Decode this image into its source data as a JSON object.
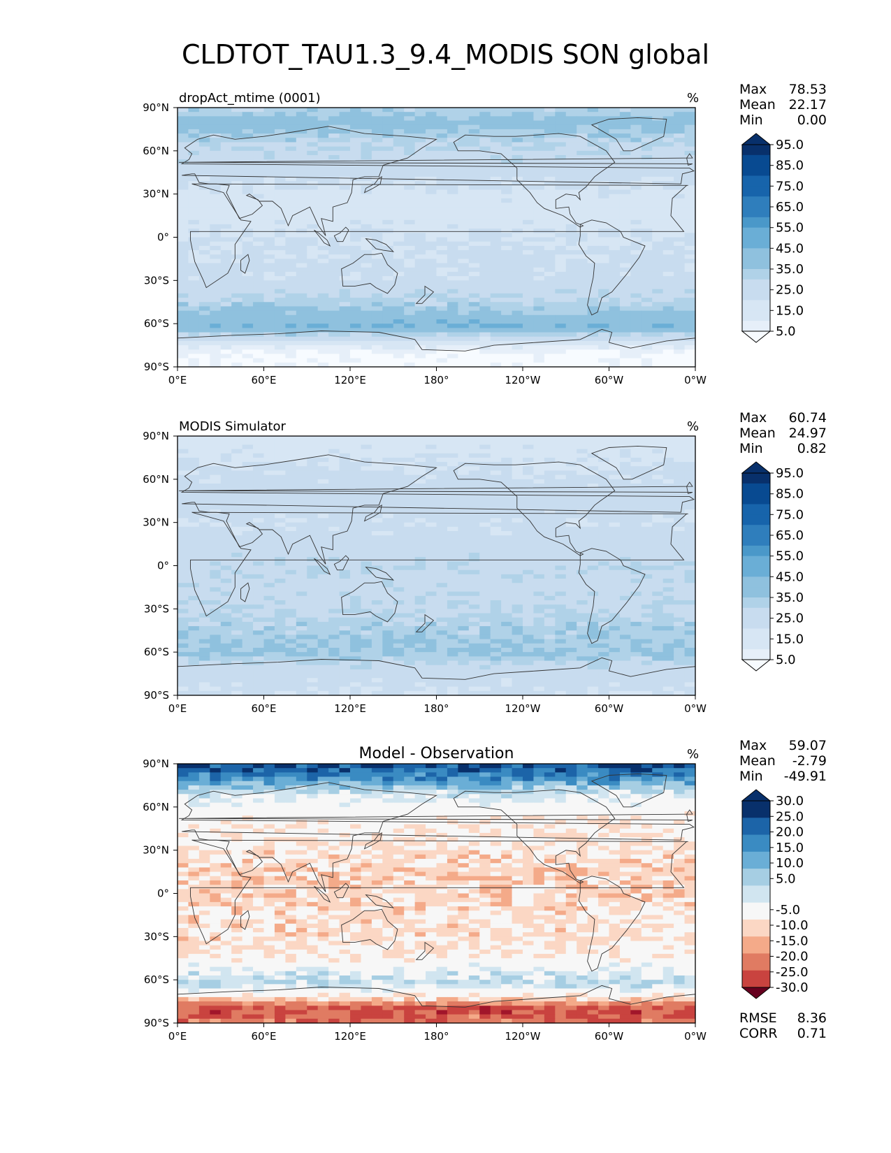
{
  "title": "CLDTOT_TAU1.3_9.4_MODIS SON global",
  "colors": {
    "blues": [
      "#f7fbff",
      "#e6eff9",
      "#d7e6f4",
      "#c8dcef",
      "#b0d2e8",
      "#8fc1de",
      "#6aaed6",
      "#4a98c9",
      "#2f7ebc",
      "#1764ab",
      "#084a91",
      "#08306b"
    ],
    "rdbu": [
      "#67001f",
      "#a1152a",
      "#c9433f",
      "#e07b62",
      "#f4aa89",
      "#fbd7c4",
      "#f7f7f7",
      "#d1e5f0",
      "#a6cee3",
      "#6aaed6",
      "#3a8bc2",
      "#1c64a8",
      "#08306b"
    ],
    "land_outline": "#333333"
  },
  "chart_data": [
    {
      "type": "heatmap",
      "name": "model-panel",
      "left_title": "dropAct_mtime (0001)",
      "center_title": "",
      "units": "%",
      "stats": [
        {
          "label": "Max",
          "value": "78.53"
        },
        {
          "label": "Mean",
          "value": "22.17"
        },
        {
          "label": "Min",
          "value": "0.00"
        }
      ],
      "extra_stats": [],
      "colormap": "blues",
      "levels": [
        0,
        5,
        10,
        15,
        20,
        25,
        30,
        35,
        40,
        45,
        50,
        55,
        60,
        65,
        70,
        75,
        80,
        85,
        90,
        95,
        100
      ],
      "colorbar_labels": [
        "95.0",
        "85.0",
        "75.0",
        "65.0",
        "55.0",
        "45.0",
        "35.0",
        "25.0",
        "15.0",
        "5.0"
      ],
      "colorbar_values": [
        95,
        85,
        75,
        65,
        55,
        45,
        35,
        25,
        15,
        5
      ],
      "x_ticks": [
        "0°E",
        "60°E",
        "120°E",
        "180°",
        "120°W",
        "60°W",
        "0°W"
      ],
      "y_ticks": [
        "90°N",
        "60°N",
        "30°N",
        "0°",
        "30°S",
        "60°S",
        "90°S"
      ],
      "latitude_profile": [
        {
          "lat": 90,
          "value": 35
        },
        {
          "lat": 80,
          "value": 45
        },
        {
          "lat": 70,
          "value": 38
        },
        {
          "lat": 60,
          "value": 33
        },
        {
          "lat": 45,
          "value": 30
        },
        {
          "lat": 30,
          "value": 22
        },
        {
          "lat": 15,
          "value": 20
        },
        {
          "lat": 0,
          "value": 25
        },
        {
          "lat": -15,
          "value": 27
        },
        {
          "lat": -30,
          "value": 28
        },
        {
          "lat": -45,
          "value": 36
        },
        {
          "lat": -55,
          "value": 44
        },
        {
          "lat": -62,
          "value": 50
        },
        {
          "lat": -70,
          "value": 30
        },
        {
          "lat": -80,
          "value": 4
        },
        {
          "lat": -90,
          "value": 2
        }
      ]
    },
    {
      "type": "heatmap",
      "name": "obs-panel",
      "left_title": "MODIS Simulator",
      "center_title": "",
      "units": "%",
      "stats": [
        {
          "label": "Max",
          "value": "60.74"
        },
        {
          "label": "Mean",
          "value": "24.97"
        },
        {
          "label": "Min",
          "value": "0.82"
        }
      ],
      "extra_stats": [],
      "colormap": "blues",
      "levels": [
        0,
        5,
        10,
        15,
        20,
        25,
        30,
        35,
        40,
        45,
        50,
        55,
        60,
        65,
        70,
        75,
        80,
        85,
        90,
        95,
        100
      ],
      "colorbar_labels": [
        "95.0",
        "85.0",
        "75.0",
        "65.0",
        "55.0",
        "45.0",
        "35.0",
        "25.0",
        "15.0",
        "5.0"
      ],
      "colorbar_values": [
        95,
        85,
        75,
        65,
        55,
        45,
        35,
        25,
        15,
        5
      ],
      "x_ticks": [
        "0°E",
        "60°E",
        "120°E",
        "180°",
        "120°W",
        "60°W",
        "0°W"
      ],
      "y_ticks": [
        "90°N",
        "60°N",
        "30°N",
        "0°",
        "30°S",
        "60°S",
        "90°S"
      ],
      "latitude_profile": [
        {
          "lat": 90,
          "value": 20
        },
        {
          "lat": 80,
          "value": 22
        },
        {
          "lat": 70,
          "value": 25
        },
        {
          "lat": 60,
          "value": 28
        },
        {
          "lat": 45,
          "value": 30
        },
        {
          "lat": 30,
          "value": 27
        },
        {
          "lat": 15,
          "value": 30
        },
        {
          "lat": 0,
          "value": 33
        },
        {
          "lat": -15,
          "value": 32
        },
        {
          "lat": -30,
          "value": 34
        },
        {
          "lat": -45,
          "value": 38
        },
        {
          "lat": -55,
          "value": 40
        },
        {
          "lat": -62,
          "value": 40
        },
        {
          "lat": -70,
          "value": 32
        },
        {
          "lat": -80,
          "value": 28
        },
        {
          "lat": -90,
          "value": 26
        }
      ]
    },
    {
      "type": "heatmap",
      "name": "diff-panel",
      "left_title": "",
      "center_title": "Model - Observation",
      "units": "%",
      "stats": [
        {
          "label": "Max",
          "value": "59.07"
        },
        {
          "label": "Mean",
          "value": "-2.79"
        },
        {
          "label": "Min",
          "value": "-49.91"
        }
      ],
      "extra_stats": [
        {
          "label": "RMSE",
          "value": "8.36"
        },
        {
          "label": "CORR",
          "value": "0.71"
        }
      ],
      "colormap": "rdbu",
      "levels": [
        -35,
        -30,
        -25,
        -20,
        -15,
        -10,
        -5,
        5,
        10,
        15,
        20,
        25,
        30,
        35
      ],
      "colorbar_labels": [
        "30.0",
        "25.0",
        "20.0",
        "15.0",
        "10.0",
        "5.0",
        "-5.0",
        "-10.0",
        "-15.0",
        "-20.0",
        "-25.0",
        "-30.0"
      ],
      "colorbar_values": [
        30,
        25,
        20,
        15,
        10,
        5,
        -5,
        -10,
        -15,
        -20,
        -25,
        -30
      ],
      "x_ticks": [
        "0°E",
        "60°E",
        "120°E",
        "180°",
        "120°W",
        "60°W",
        "0°W"
      ],
      "y_ticks": [
        "90°N",
        "60°N",
        "30°N",
        "0°",
        "30°S",
        "60°S",
        "90°S"
      ],
      "latitude_profile": [
        {
          "lat": 90,
          "value": 30
        },
        {
          "lat": 80,
          "value": 22
        },
        {
          "lat": 70,
          "value": 8
        },
        {
          "lat": 60,
          "value": 0
        },
        {
          "lat": 45,
          "value": -3
        },
        {
          "lat": 30,
          "value": -5
        },
        {
          "lat": 15,
          "value": -8
        },
        {
          "lat": 0,
          "value": -7
        },
        {
          "lat": -15,
          "value": -6
        },
        {
          "lat": -30,
          "value": -6
        },
        {
          "lat": -45,
          "value": -3
        },
        {
          "lat": -55,
          "value": 6
        },
        {
          "lat": -62,
          "value": 10
        },
        {
          "lat": -70,
          "value": -2
        },
        {
          "lat": -80,
          "value": -22
        },
        {
          "lat": -90,
          "value": -18
        }
      ]
    }
  ]
}
